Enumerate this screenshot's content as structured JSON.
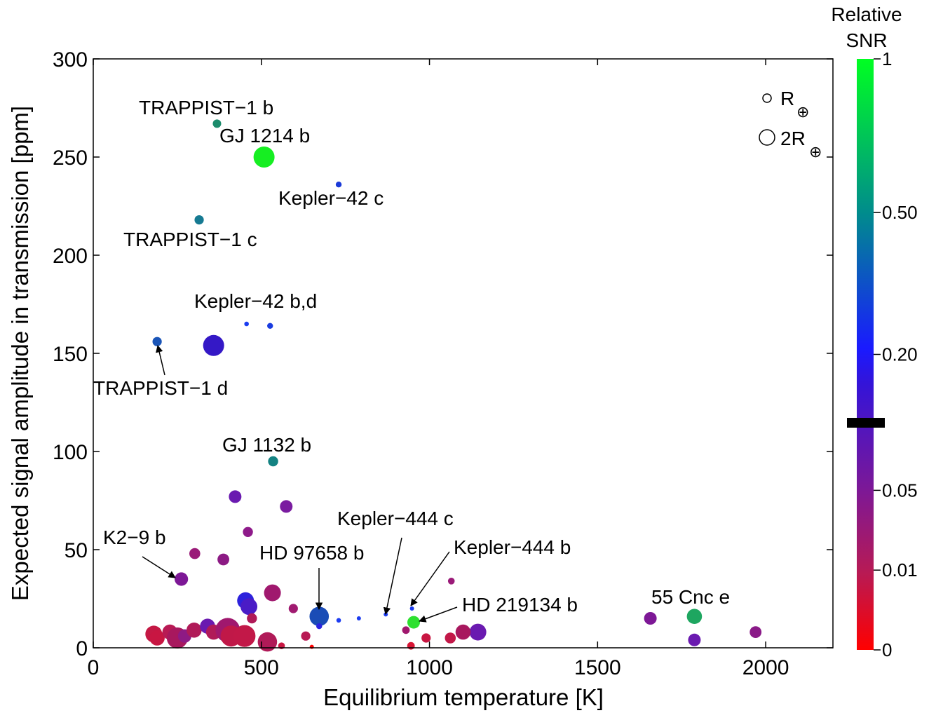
{
  "chart_data": {
    "type": "scatter",
    "xlabel": "Equilibrium temperature  [K]",
    "ylabel": "Expected signal amplitude in transmission [ppm]",
    "xlim": [
      0,
      2200
    ],
    "ylim": [
      0,
      300
    ],
    "xticks": [
      0,
      500,
      1000,
      1500,
      2000
    ],
    "yticks": [
      0,
      50,
      100,
      150,
      200,
      250,
      300
    ],
    "grid": false,
    "size_legend": {
      "placement": "top-right",
      "entries": [
        {
          "label": "R",
          "sub": "⊕",
          "radius_earth": 1
        },
        {
          "label": "2R",
          "sub": "⊕",
          "radius_earth": 2
        }
      ]
    },
    "colorbar": {
      "title_line1": "Relative",
      "title_line2": "SNR",
      "scale": "log",
      "ticks": [
        {
          "value": 0,
          "label": "0"
        },
        {
          "value": 0.01,
          "label": "0.01"
        },
        {
          "value": 0.05,
          "label": "0.05"
        },
        {
          "value": 0.2,
          "label": "0.20"
        },
        {
          "value": 0.5,
          "label": "0.50"
        },
        {
          "value": 1,
          "label": "1"
        }
      ],
      "marker_value": 0.12,
      "colors": [
        "#ff0000",
        "#a0206a",
        "#5a16c8",
        "#1c1cff",
        "#008c8c",
        "#00ff22"
      ]
    },
    "points": [
      {
        "x": 368,
        "y": 267,
        "r_earth": 1.0,
        "color": "#1c8c6c"
      },
      {
        "x": 508,
        "y": 250,
        "r_earth": 2.5,
        "color": "#16ee22"
      },
      {
        "x": 730,
        "y": 236,
        "r_earth": 0.7,
        "color": "#1a3ad8"
      },
      {
        "x": 315,
        "y": 218,
        "r_earth": 1.1,
        "color": "#167a92"
      },
      {
        "x": 456,
        "y": 165,
        "r_earth": 0.55,
        "color": "#1a3cf0"
      },
      {
        "x": 526,
        "y": 164,
        "r_earth": 0.7,
        "color": "#1a3ce0"
      },
      {
        "x": 190,
        "y": 156,
        "r_earth": 1.1,
        "color": "#1a55b8"
      },
      {
        "x": 358,
        "y": 154,
        "r_earth": 2.5,
        "color": "#3418c6"
      },
      {
        "x": 535,
        "y": 95,
        "r_earth": 1.2,
        "color": "#138282"
      },
      {
        "x": 422,
        "y": 77,
        "r_earth": 1.5,
        "color": "#6a1ab0"
      },
      {
        "x": 574,
        "y": 72,
        "r_earth": 1.5,
        "color": "#7a1ca0"
      },
      {
        "x": 460,
        "y": 59,
        "r_earth": 1.2,
        "color": "#8e1a8a"
      },
      {
        "x": 302,
        "y": 48,
        "r_earth": 1.3,
        "color": "#9a1a78"
      },
      {
        "x": 387,
        "y": 45,
        "r_earth": 1.4,
        "color": "#8c1a84"
      },
      {
        "x": 262,
        "y": 35,
        "r_earth": 1.6,
        "color": "#7d1896"
      },
      {
        "x": 533,
        "y": 28,
        "r_earth": 2.0,
        "color": "#a0186e"
      },
      {
        "x": 453,
        "y": 24,
        "r_earth": 2.0,
        "color": "#2d22dc"
      },
      {
        "x": 463,
        "y": 21,
        "r_earth": 2.0,
        "color": "#4a1cc6"
      },
      {
        "x": 672,
        "y": 16,
        "r_earth": 2.3,
        "color": "#1a4cb6"
      },
      {
        "x": 595,
        "y": 20,
        "r_earth": 1.1,
        "color": "#a01a70"
      },
      {
        "x": 672,
        "y": 11,
        "r_earth": 0.7,
        "color": "#2a22e0"
      },
      {
        "x": 730,
        "y": 14,
        "r_earth": 0.55,
        "color": "#1c3cf2"
      },
      {
        "x": 790,
        "y": 15,
        "r_earth": 0.5,
        "color": "#1c3cf0"
      },
      {
        "x": 870,
        "y": 17,
        "r_earth": 0.45,
        "color": "#1c3cf0"
      },
      {
        "x": 948,
        "y": 20,
        "r_earth": 0.4,
        "color": "#1c3cf0"
      },
      {
        "x": 953,
        "y": 13,
        "r_earth": 1.5,
        "color": "#2ee030"
      },
      {
        "x": 1065,
        "y": 34,
        "r_earth": 0.8,
        "color": "#9a1a78"
      },
      {
        "x": 1144,
        "y": 8,
        "r_earth": 2.0,
        "color": "#6a1ab0"
      },
      {
        "x": 1100,
        "y": 8,
        "r_earth": 1.8,
        "color": "#a8185e"
      },
      {
        "x": 1062,
        "y": 5,
        "r_earth": 1.3,
        "color": "#c21848"
      },
      {
        "x": 990,
        "y": 5,
        "r_earth": 1.1,
        "color": "#c81642"
      },
      {
        "x": 945,
        "y": 1,
        "r_earth": 0.9,
        "color": "#d81434"
      },
      {
        "x": 930,
        "y": 9,
        "r_earth": 0.9,
        "color": "#a0186e"
      },
      {
        "x": 1657,
        "y": 15,
        "r_earth": 1.5,
        "color": "#7d1896"
      },
      {
        "x": 1788,
        "y": 16,
        "r_earth": 1.8,
        "color": "#1ea660"
      },
      {
        "x": 1788,
        "y": 4,
        "r_earth": 1.5,
        "color": "#6a1ab0"
      },
      {
        "x": 1970,
        "y": 8,
        "r_earth": 1.4,
        "color": "#8a1a88"
      },
      {
        "x": 180,
        "y": 7,
        "r_earth": 2.0,
        "color": "#c41844"
      },
      {
        "x": 190,
        "y": 5,
        "r_earth": 1.8,
        "color": "#c81642"
      },
      {
        "x": 228,
        "y": 8,
        "r_earth": 1.8,
        "color": "#b81a54"
      },
      {
        "x": 250,
        "y": 5,
        "r_earth": 2.5,
        "color": "#a8185e"
      },
      {
        "x": 272,
        "y": 6,
        "r_earth": 1.6,
        "color": "#8e1a84"
      },
      {
        "x": 300,
        "y": 9,
        "r_earth": 1.8,
        "color": "#b01a58"
      },
      {
        "x": 340,
        "y": 11,
        "r_earth": 1.8,
        "color": "#6a1ab0"
      },
      {
        "x": 358,
        "y": 8,
        "r_earth": 1.8,
        "color": "#b01a58"
      },
      {
        "x": 400,
        "y": 9,
        "r_earth": 2.9,
        "color": "#a0186e"
      },
      {
        "x": 410,
        "y": 6,
        "r_earth": 2.5,
        "color": "#c01848"
      },
      {
        "x": 450,
        "y": 6,
        "r_earth": 2.6,
        "color": "#c21848"
      },
      {
        "x": 472,
        "y": 15,
        "r_earth": 1.2,
        "color": "#b01a58"
      },
      {
        "x": 518,
        "y": 3,
        "r_earth": 2.3,
        "color": "#b01a58"
      },
      {
        "x": 560,
        "y": 1,
        "r_earth": 0.8,
        "color": "#c81642"
      },
      {
        "x": 632,
        "y": 6,
        "r_earth": 1.1,
        "color": "#b81a54"
      },
      {
        "x": 650,
        "y": 0.5,
        "r_earth": 0.4,
        "color": "#ff0000"
      }
    ],
    "annotations": [
      {
        "text": "TRAPPIST−1 b"
      },
      {
        "text": "GJ 1214 b"
      },
      {
        "text": "Kepler−42 c"
      },
      {
        "text": "TRAPPIST−1 c"
      },
      {
        "text": "Kepler−42 b,d"
      },
      {
        "text": "TRAPPIST−1 d"
      },
      {
        "text": "GJ 1132 b"
      },
      {
        "text": "K2−9 b"
      },
      {
        "text": "HD 97658 b"
      },
      {
        "text": "Kepler−444 c"
      },
      {
        "text": "Kepler−444 b"
      },
      {
        "text": "HD 219134 b"
      },
      {
        "text": "55 Cnc e"
      }
    ]
  }
}
